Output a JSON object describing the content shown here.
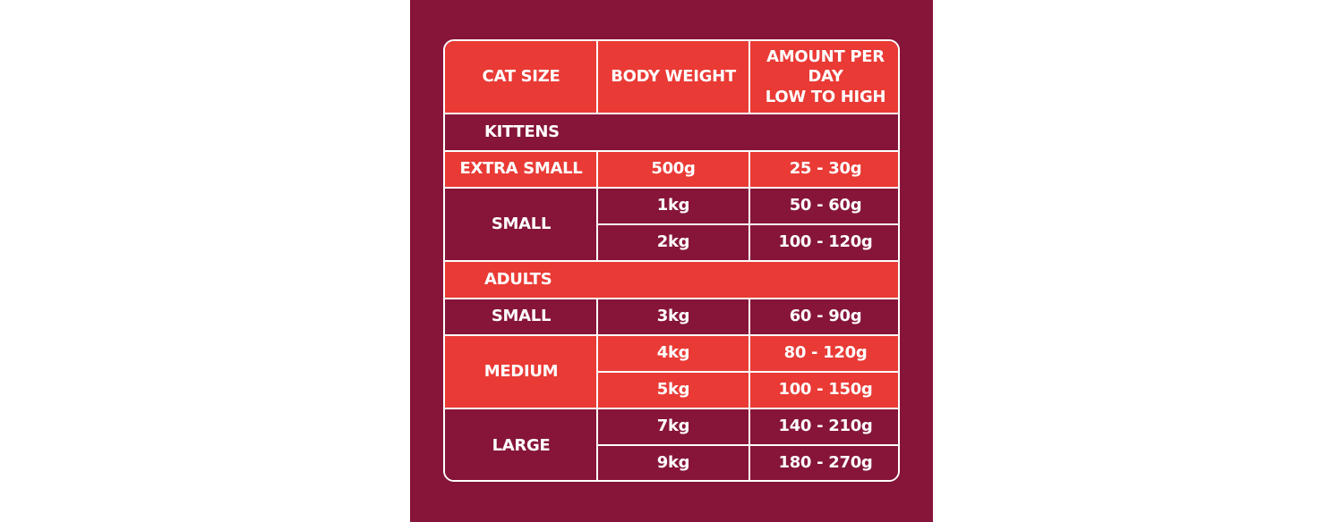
{
  "table": {
    "headers": [
      "CAT SIZE",
      "BODY WEIGHT",
      "AMOUNT PER DAY\nLOW TO HIGH"
    ],
    "sections": [
      {
        "label": "KITTENS",
        "groups": [
          {
            "size": "EXTRA SMALL",
            "rows": [
              {
                "weight": "500g",
                "amount": "25 - 30g"
              }
            ]
          },
          {
            "size": "SMALL",
            "rows": [
              {
                "weight": "1kg",
                "amount": "50 - 60g"
              },
              {
                "weight": "2kg",
                "amount": "100 - 120g"
              }
            ]
          }
        ]
      },
      {
        "label": "ADULTS",
        "groups": [
          {
            "size": "SMALL",
            "rows": [
              {
                "weight": "3kg",
                "amount": "60 - 90g"
              }
            ]
          },
          {
            "size": "MEDIUM",
            "rows": [
              {
                "weight": "4kg",
                "amount": "80 - 120g"
              },
              {
                "weight": "5kg",
                "amount": "100 - 150g"
              }
            ]
          },
          {
            "size": "LARGE",
            "rows": [
              {
                "weight": "7kg",
                "amount": "140 - 210g"
              },
              {
                "weight": "9kg",
                "amount": "180 - 270g"
              }
            ]
          }
        ]
      }
    ]
  },
  "colors": {
    "panel": "#861539",
    "accent_red": "#e93a35",
    "line": "#ffffff"
  }
}
